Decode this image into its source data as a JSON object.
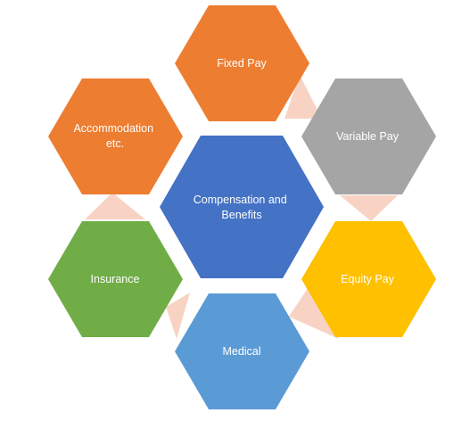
{
  "diagram": {
    "center": {
      "label_lines": [
        "Compensation and",
        "Benefits"
      ],
      "color": "#4472C4"
    },
    "items": [
      {
        "key": "fixed-pay",
        "label_lines": [
          "Fixed Pay"
        ],
        "color": "#ED7D31"
      },
      {
        "key": "variable-pay",
        "label_lines": [
          "Variable Pay"
        ],
        "color": "#A5A5A5"
      },
      {
        "key": "equity-pay",
        "label_lines": [
          "Equity Pay"
        ],
        "color": "#FFC000"
      },
      {
        "key": "medical",
        "label_lines": [
          "Medical"
        ],
        "color": "#5B9BD5"
      },
      {
        "key": "insurance",
        "label_lines": [
          "Insurance"
        ],
        "color": "#70AD47"
      },
      {
        "key": "accommodation",
        "label_lines": [
          "Accommodation",
          "etc."
        ],
        "color": "#ED7D31"
      }
    ],
    "connector_color": "#F8D3C4"
  }
}
